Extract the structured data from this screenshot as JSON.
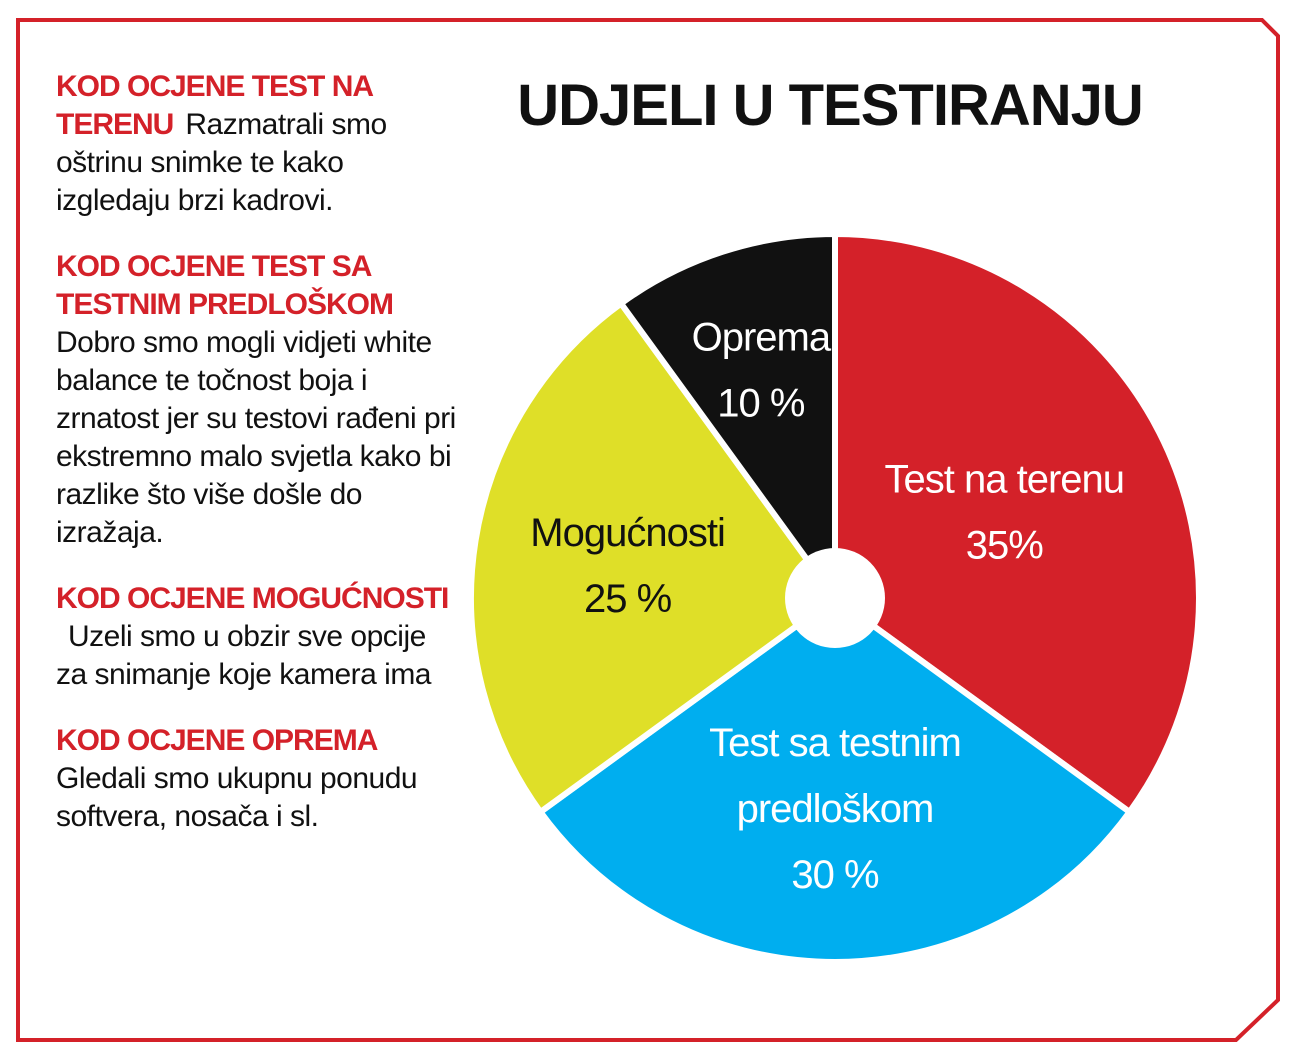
{
  "colors": {
    "frame": "#d42129",
    "heading": "#d42129",
    "text": "#111111"
  },
  "left_column": {
    "blocks": [
      {
        "heading": "KOD OCJENE TEST NA TERENU",
        "body": "Razmatrali smo oštrinu snimke te kako izgledaju brzi kadrovi."
      },
      {
        "heading": "KOD OCJENE TEST SA TESTNIM PREDLOŠKOM",
        "body": "Dobro smo mogli vidjeti white balance te točnost boja i zrnatost jer su testovi rađeni pri ekstremno malo svjetla kako bi razlike što više došle do izražaja."
      },
      {
        "heading": "KOD OCJENE MOGUĆNOSTI",
        "body": "Uzeli smo u obzir sve opcije za snimanje koje kamera ima"
      },
      {
        "heading": "KOD OCJENE OPREMA",
        "body": "Gledali smo ukupnu ponudu softvera, nosača i sl."
      }
    ]
  },
  "chart_data": {
    "type": "pie",
    "title": "UDJELI U TESTIRANJU",
    "start_angle_deg": 0,
    "direction": "clockwise",
    "donut_hole": true,
    "slices": [
      {
        "label_lines": [
          "Test na terenu",
          "35%"
        ],
        "value": 35,
        "color": "#d42129",
        "text_color": "#ffffff"
      },
      {
        "label_lines": [
          "Test sa  testnim",
          "predloškom",
          "30 %"
        ],
        "value": 30,
        "color": "#00aeef",
        "text_color": "#ffffff"
      },
      {
        "label_lines": [
          "Mogućnosti",
          "25 %"
        ],
        "value": 25,
        "color": "#dfdf28",
        "text_color": "#111111"
      },
      {
        "label_lines": [
          "Oprema",
          "10 %"
        ],
        "value": 10,
        "color": "#111111",
        "text_color": "#ffffff"
      }
    ]
  }
}
